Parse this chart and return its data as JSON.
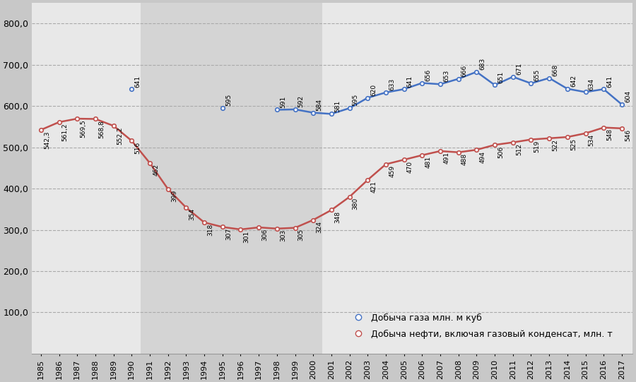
{
  "years": [
    1985,
    1986,
    1987,
    1988,
    1989,
    1990,
    1991,
    1992,
    1993,
    1994,
    1995,
    1996,
    1997,
    1998,
    1999,
    2000,
    2001,
    2002,
    2003,
    2004,
    2005,
    2006,
    2007,
    2008,
    2009,
    2010,
    2011,
    2012,
    2013,
    2014,
    2015,
    2016,
    2017
  ],
  "oil_vals": [
    542.3,
    561.2,
    569.5,
    568.8,
    552.2,
    516,
    462,
    399,
    354,
    318,
    307,
    301,
    306,
    303,
    305,
    324,
    348,
    380,
    421,
    459,
    470,
    481,
    491,
    488,
    494,
    506,
    512,
    519,
    522,
    525,
    534,
    548,
    546
  ],
  "oil_labels": [
    "542,3",
    "561,2",
    "569,5",
    "568,8",
    "552,2",
    "516",
    "462",
    "399",
    "354",
    "318",
    "307",
    "301",
    "306",
    "303",
    "305",
    "324",
    "348",
    "380",
    "421",
    "459",
    "470",
    "481",
    "491",
    "488",
    "494",
    "506",
    "512",
    "519",
    "522",
    "525",
    "534",
    "548",
    "546"
  ],
  "gas_vals": [
    null,
    null,
    null,
    null,
    null,
    641,
    null,
    null,
    null,
    null,
    595,
    null,
    null,
    591,
    592,
    584,
    581,
    595,
    620,
    633,
    641,
    656,
    653,
    666,
    683,
    651,
    671,
    655,
    668,
    642,
    634,
    641,
    604
  ],
  "gas_labels": [
    "",
    "",
    "",
    "",
    "",
    "641",
    "",
    "",
    "",
    "",
    "595",
    "",
    "",
    "591",
    "592",
    "584",
    "581",
    "595",
    "620",
    "633",
    "641",
    "656",
    "653",
    "666",
    "683",
    "651",
    "671",
    "655",
    "668",
    "642",
    "634",
    "641",
    "604"
  ],
  "gas_color": "#4472c4",
  "oil_color": "#c0504d",
  "bg_light": "#e8e8e8",
  "bg_dark": "#d4d4d4",
  "ylim": [
    0,
    850
  ],
  "yticks": [
    100.0,
    200.0,
    300.0,
    400.0,
    500.0,
    600.0,
    700.0,
    800.0
  ],
  "ytick_labels": [
    "100,0",
    "200,0",
    "300,0",
    "400,0",
    "500,0",
    "600,0",
    "700,0",
    "800,0"
  ],
  "legend_gas": "Добыча газа млн. м куб",
  "legend_oil": "Добыча нефти, включая газовый конденсат, млн. т",
  "bg_split1": 1990.5,
  "bg_split2": 2000.5
}
